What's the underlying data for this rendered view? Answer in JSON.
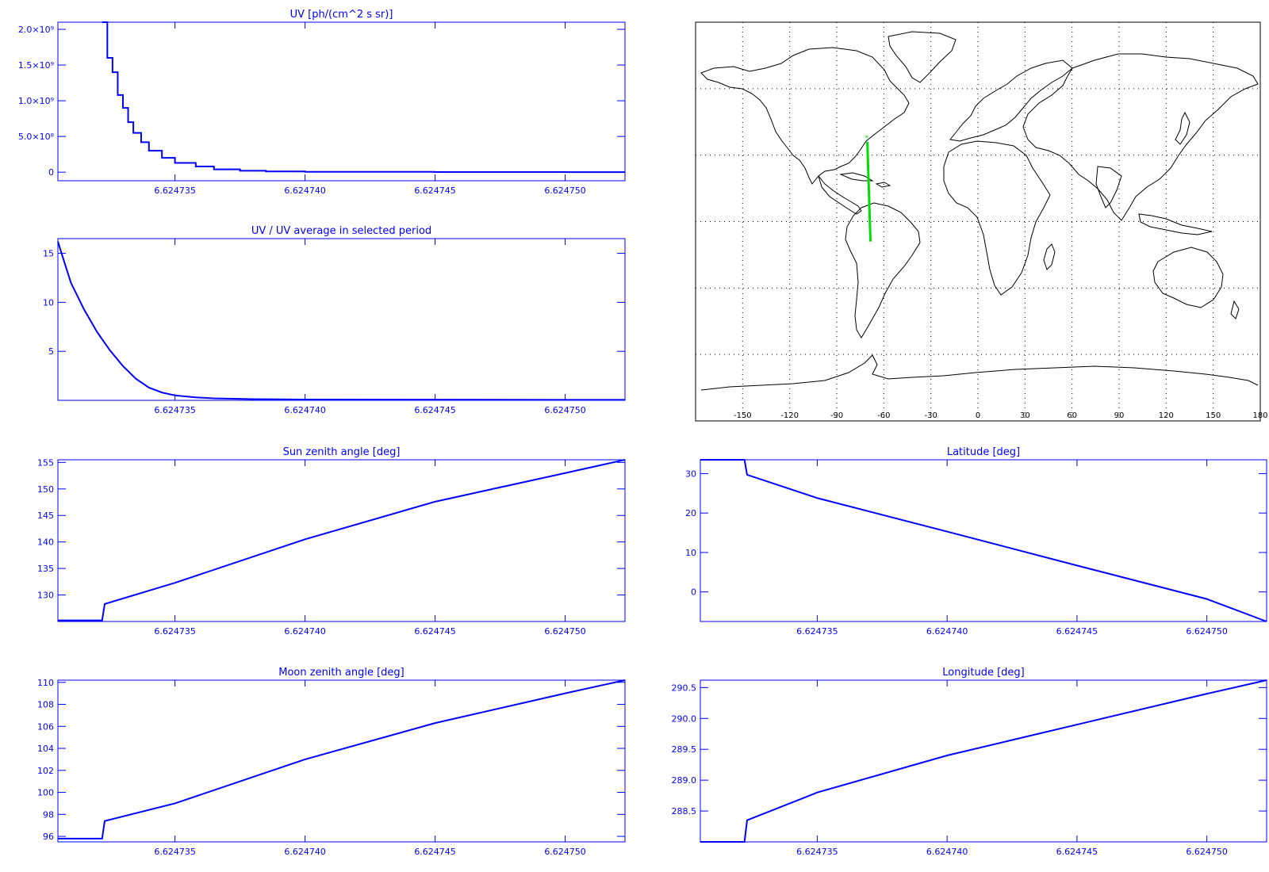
{
  "chart_data": [
    {
      "id": "uv",
      "type": "line",
      "title": "UV [ph/(cm^2 s sr)]",
      "xlim": [
        6.6247305,
        6.6247523
      ],
      "ylim": [
        -120000000,
        2100000000
      ],
      "xticks": [
        6.624735,
        6.62474,
        6.624745,
        6.62475
      ],
      "xtick_labels": [
        "6.624735",
        "6.624740",
        "6.624745",
        "6.624750"
      ],
      "yticks": [
        0,
        500000000,
        1000000000,
        1500000000,
        2000000000
      ],
      "ytick_labels": [
        "0",
        "5.0×10⁸",
        "1.0×10⁹",
        "1.5×10⁹",
        "2.0×10⁹"
      ],
      "stepped": true,
      "x": [
        6.6247322,
        6.6247324,
        6.6247326,
        6.6247328,
        6.624733,
        6.6247332,
        6.6247334,
        6.6247337,
        6.624734,
        6.6247345,
        6.624735,
        6.6247358,
        6.6247365,
        6.6247375,
        6.6247385,
        6.62474,
        6.62474498,
        6.62475,
        6.6247523
      ],
      "y": [
        2100000000,
        1600000000,
        1400000000,
        1080000000,
        900000000,
        700000000,
        550000000,
        420000000,
        300000000,
        200000000,
        130000000,
        80000000,
        40000000,
        20000000,
        10000000,
        5000000,
        2000000,
        1000000,
        1000000
      ]
    },
    {
      "id": "uv_ratio",
      "type": "line",
      "title": "UV / UV average in selected period",
      "xlim": [
        6.6247305,
        6.6247523
      ],
      "ylim": [
        0,
        16.5
      ],
      "xticks": [
        6.624735,
        6.62474,
        6.624745,
        6.62475
      ],
      "xtick_labels": [
        "6.624735",
        "6.624740",
        "6.624745",
        "6.624750"
      ],
      "yticks": [
        5,
        10,
        15
      ],
      "ytick_labels": [
        "5",
        "10",
        "15"
      ],
      "x": [
        6.6247305,
        6.6247307,
        6.624731,
        6.6247315,
        6.624732,
        6.6247325,
        6.624733,
        6.6247335,
        6.624734,
        6.6247345,
        6.624735,
        6.6247358,
        6.6247365,
        6.624738,
        6.62474,
        6.62475,
        6.6247523
      ],
      "y": [
        16.2,
        14.5,
        12.0,
        9.3,
        7.0,
        5.1,
        3.5,
        2.2,
        1.3,
        0.8,
        0.5,
        0.3,
        0.2,
        0.12,
        0.08,
        0.05,
        0.05
      ]
    },
    {
      "id": "sun",
      "type": "line",
      "title": "Sun zenith angle [deg]",
      "xlim": [
        6.6247305,
        6.6247523
      ],
      "ylim": [
        125,
        155.5
      ],
      "xticks": [
        6.624735,
        6.62474,
        6.624745,
        6.62475
      ],
      "xtick_labels": [
        "6.624735",
        "6.624740",
        "6.624745",
        "6.624750"
      ],
      "yticks": [
        130,
        135,
        140,
        145,
        150,
        155
      ],
      "ytick_labels": [
        "130",
        "135",
        "140",
        "145",
        "150",
        "155"
      ],
      "x": [
        6.6247305,
        6.6247322,
        6.6247323,
        6.624735,
        6.62474,
        6.624745,
        6.62475,
        6.6247523
      ],
      "y": [
        125.2,
        125.2,
        128.3,
        132.3,
        140.5,
        147.6,
        153.0,
        155.5
      ]
    },
    {
      "id": "lat",
      "type": "line",
      "title": "Latitude [deg]",
      "xlim": [
        6.6247305,
        6.6247523
      ],
      "ylim": [
        -7.5,
        33.5
      ],
      "xticks": [
        6.624735,
        6.62474,
        6.624745,
        6.62475
      ],
      "xtick_labels": [
        "6.624735",
        "6.624740",
        "6.624745",
        "6.624750"
      ],
      "yticks": [
        0,
        10,
        20,
        30
      ],
      "ytick_labels": [
        "0",
        "10",
        "20",
        "30"
      ],
      "x": [
        6.6247305,
        6.6247322,
        6.6247323,
        6.624735,
        6.62474,
        6.624745,
        6.62475,
        6.6247523
      ],
      "y": [
        33.5,
        33.5,
        29.7,
        23.8,
        15.3,
        6.7,
        -1.8,
        -7.5
      ]
    },
    {
      "id": "moon",
      "type": "line",
      "title": "Moon zenith angle [deg]",
      "xlim": [
        6.6247305,
        6.6247523
      ],
      "ylim": [
        95.5,
        110.2
      ],
      "xticks": [
        6.624735,
        6.62474,
        6.624745,
        6.62475
      ],
      "xtick_labels": [
        "6.624735",
        "6.624740",
        "6.624745",
        "6.624750"
      ],
      "yticks": [
        96,
        98,
        100,
        102,
        104,
        106,
        108,
        110
      ],
      "ytick_labels": [
        "96",
        "98",
        "100",
        "102",
        "104",
        "106",
        "108",
        "110"
      ],
      "x": [
        6.6247305,
        6.6247322,
        6.6247323,
        6.624735,
        6.62474,
        6.624745,
        6.62475,
        6.6247523
      ],
      "y": [
        95.8,
        95.8,
        97.4,
        99.0,
        103.0,
        106.3,
        109.0,
        110.2
      ]
    },
    {
      "id": "lon",
      "type": "line",
      "title": "Longitude [deg]",
      "xlim": [
        6.6247305,
        6.6247523
      ],
      "ylim": [
        288.0,
        290.62
      ],
      "xticks": [
        6.624735,
        6.62474,
        6.624745,
        6.62475
      ],
      "xtick_labels": [
        "6.624735",
        "6.624740",
        "6.624745",
        "6.624750"
      ],
      "yticks": [
        288.5,
        289.0,
        289.5,
        290.0,
        290.5
      ],
      "ytick_labels": [
        "288.5",
        "289.0",
        "289.5",
        "290.0",
        "290.5"
      ],
      "x": [
        6.6247305,
        6.6247322,
        6.6247323,
        6.624735,
        6.62474,
        6.624745,
        6.62475,
        6.6247523
      ],
      "y": [
        288.0,
        288.0,
        288.35,
        288.8,
        289.4,
        289.9,
        290.4,
        290.62
      ]
    }
  ],
  "map": {
    "xticks": [
      -150,
      -120,
      -90,
      -60,
      -30,
      0,
      30,
      60,
      90,
      120,
      150,
      180
    ],
    "xtick_labels": [
      "-150",
      "-120",
      "-90",
      "-60",
      "-30",
      "0",
      "30",
      "60",
      "90",
      "120",
      "150",
      "180"
    ],
    "lon_range": [
      -180,
      180
    ],
    "lat_range": [
      -90,
      90
    ],
    "track_color": "#00dd00",
    "track_start": [
      -70.5,
      36.0
    ],
    "track_end": [
      -68.5,
      -9.0
    ],
    "marker_symbol": "*"
  },
  "colors": {
    "axis": "#0000ff",
    "series": "#0000ff",
    "map_lines": "#000000",
    "track": "#00dd00"
  }
}
